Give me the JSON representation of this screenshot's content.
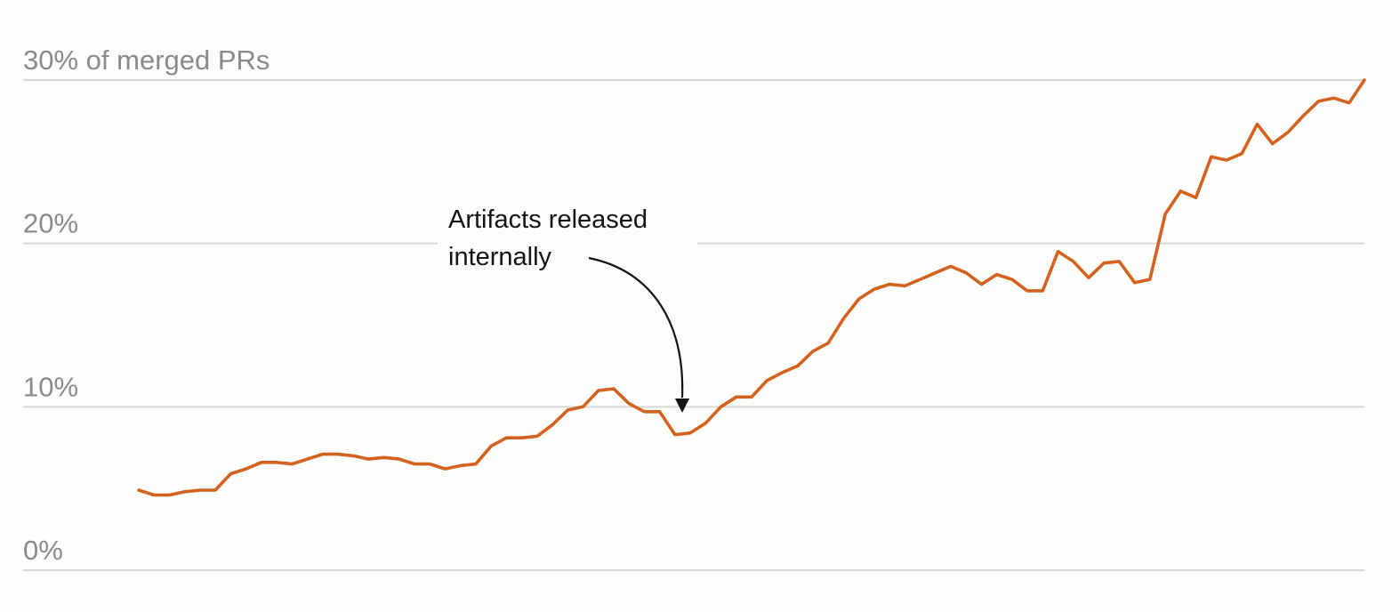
{
  "chart_data": {
    "type": "line",
    "ylim": [
      0,
      30
    ],
    "y_ticks": [
      {
        "value": 0,
        "label": "0%"
      },
      {
        "value": 10,
        "label": "10%"
      },
      {
        "value": 20,
        "label": "20%"
      },
      {
        "value": 30,
        "label": "30% of merged PRs"
      }
    ],
    "grid": true,
    "colors": {
      "line": "#d4621f",
      "grid": "#d9d9d6",
      "tick_text": "#8a8a88",
      "annotation": "#141413"
    },
    "series": [
      {
        "values": [
          4.9,
          4.6,
          4.6,
          4.8,
          4.9,
          4.9,
          5.9,
          6.2,
          6.6,
          6.6,
          6.5,
          6.8,
          7.1,
          7.1,
          7.0,
          6.8,
          6.9,
          6.8,
          6.5,
          6.5,
          6.2,
          6.4,
          6.5,
          7.6,
          8.1,
          8.1,
          8.2,
          8.9,
          9.8,
          10.0,
          11.0,
          11.1,
          10.2,
          9.7,
          9.7,
          8.3,
          8.4,
          9.0,
          10.0,
          10.6,
          10.6,
          11.6,
          12.1,
          12.5,
          13.4,
          13.9,
          15.4,
          16.6,
          17.2,
          17.5,
          17.4,
          17.8,
          18.2,
          18.6,
          18.2,
          17.5,
          18.1,
          17.8,
          17.1,
          17.1,
          19.5,
          18.9,
          17.9,
          18.8,
          18.9,
          17.6,
          17.8,
          21.8,
          23.2,
          22.8,
          25.3,
          25.1,
          25.5,
          27.3,
          26.1,
          26.8,
          27.8,
          28.7,
          28.9,
          28.6,
          30.0
        ]
      }
    ],
    "annotations": [
      {
        "lines": [
          "Artifacts released",
          "internally"
        ],
        "points_to_index": 35
      }
    ]
  }
}
